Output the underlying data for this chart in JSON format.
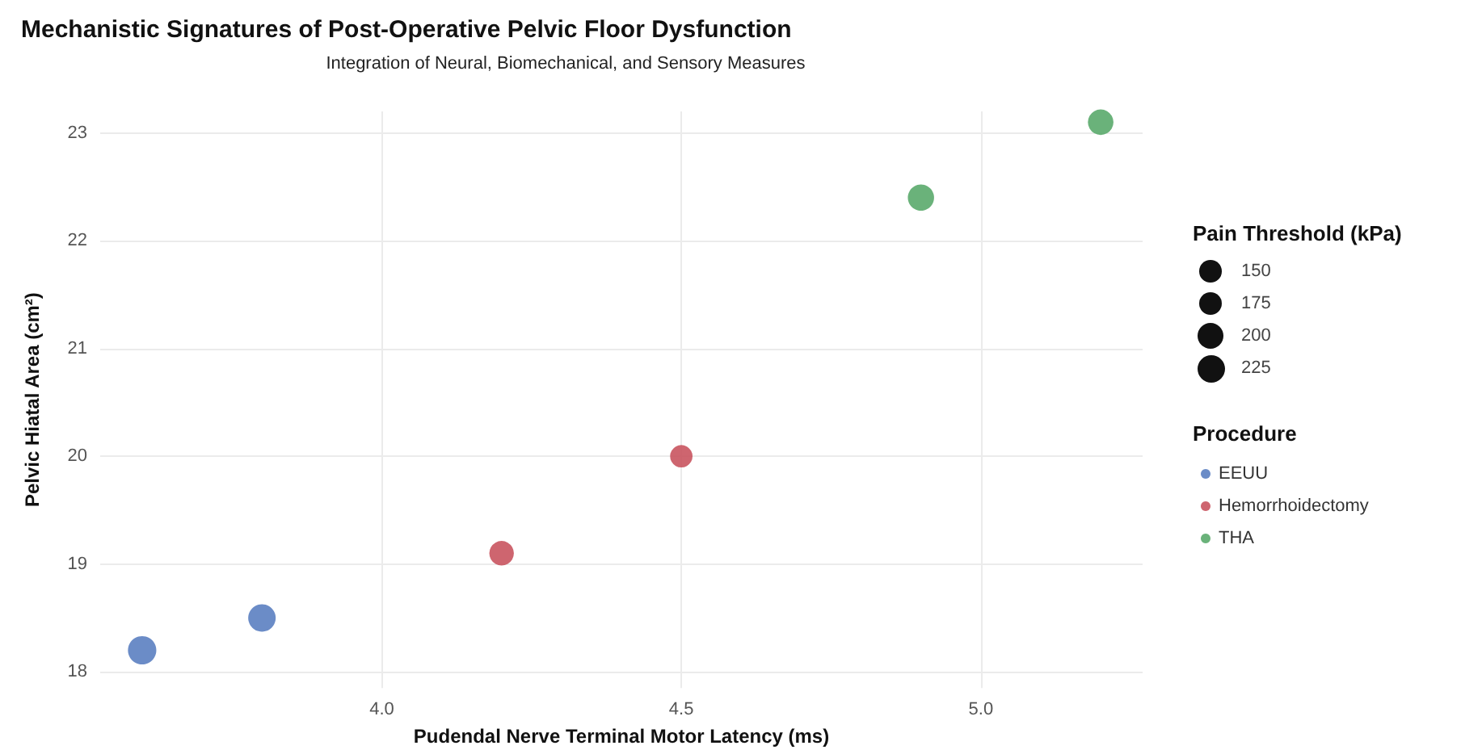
{
  "chart_data": {
    "type": "bubble",
    "title": "Mechanistic Signatures of Post-Operative Pelvic Floor Dysfunction",
    "subtitle": "Integration of Neural, Biomechanical, and Sensory Measures",
    "xlabel": "Pudendal Nerve Terminal Motor Latency (ms)",
    "ylabel": "Pelvic Hiatal Area (cm²)",
    "legend_title": "Procedure",
    "annotations": [
      "Pain Threshold (kPa)"
    ],
    "series": [
      {
        "name": "EEUU",
        "color": "#5b7fc1",
        "x": [
          3.6,
          3.8
        ],
        "values": [
          18.2,
          18.5
        ],
        "sizes": [
          240,
          225
        ]
      },
      {
        "name": "Hemorrhoidectomy",
        "color": "#c9545f",
        "x": [
          4.2,
          4.5
        ],
        "values": [
          19.1,
          20.0
        ],
        "sizes": [
          180,
          150
        ]
      },
      {
        "name": "THA",
        "color": "#5aaa6c",
        "x": [
          4.9,
          5.2
        ],
        "values": [
          22.4,
          23.1
        ],
        "sizes": [
          205,
          195
        ]
      }
    ],
    "size_legend": [
      150,
      175,
      200,
      225
    ],
    "xlim": [
      3.53,
      5.27
    ],
    "xticks": [
      {
        "value": 4,
        "label": "4.0"
      },
      4.5,
      {
        "value": 5,
        "label": "5.0"
      }
    ],
    "ylim": [
      17.85,
      23.2
    ],
    "yticks": [
      18,
      19,
      20,
      21,
      22,
      23
    ],
    "grid": true,
    "legend": "right",
    "marker": "circle"
  }
}
